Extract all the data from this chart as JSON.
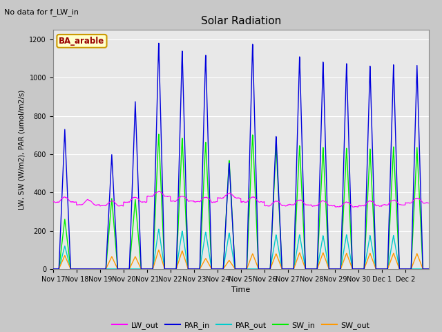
{
  "title": "Solar Radiation",
  "note": "No data for f_LW_in",
  "xlabel": "Time",
  "ylabel": "LW, SW (W/m2), PAR (umol/m2/s)",
  "site_label": "BA_arable",
  "ylim": [
    0,
    1250
  ],
  "colors": {
    "LW_out": "#ff00ff",
    "PAR_in": "#0000dd",
    "PAR_out": "#00cccc",
    "SW_in": "#00ee00",
    "SW_out": "#ff9900"
  },
  "fig_bg": "#c8c8c8",
  "plot_bg": "#e8e8e8",
  "tick_labels": [
    "Nov 17",
    "Nov 18",
    "Nov 19",
    "Nov 20",
    "Nov 21",
    "Nov 22",
    "Nov 23",
    "Nov 24",
    "Nov 25",
    "Nov 26",
    "Nov 27",
    "Nov 28",
    "Nov 29",
    "Nov 30",
    "Dec 1",
    "Dec 2"
  ],
  "par_in_peaks": [
    730,
    0,
    600,
    880,
    1190,
    1150,
    1130,
    560,
    1190,
    700,
    1120,
    1090,
    1080,
    1065,
    1070,
    1065
  ],
  "par_out_peaks": [
    120,
    0,
    0,
    0,
    210,
    200,
    195,
    190,
    0,
    180,
    180,
    175,
    180,
    175,
    175,
    0
  ],
  "sw_in_peaks": [
    260,
    0,
    370,
    365,
    710,
    690,
    670,
    575,
    710,
    650,
    650,
    640,
    635,
    630,
    640,
    635
  ],
  "sw_out_peaks": [
    70,
    0,
    65,
    65,
    100,
    95,
    55,
    45,
    80,
    80,
    85,
    85,
    82,
    82,
    82,
    80
  ],
  "lw_base": 350,
  "num_days": 16
}
